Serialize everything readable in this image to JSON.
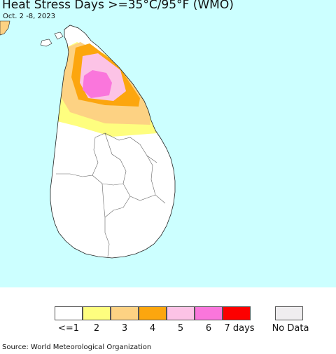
{
  "title": "Heat Stress Days >=35°C/95°F (WMO)",
  "subtitle": "Oct. 2 -8, 2023",
  "legend": {
    "items": [
      {
        "label": "<=1",
        "color": "#ffffff"
      },
      {
        "label": "2",
        "color": "#fefe7f"
      },
      {
        "label": "3",
        "color": "#fdd283"
      },
      {
        "label": "4",
        "color": "#fca60e"
      },
      {
        "label": "5",
        "color": "#fcc3e6"
      },
      {
        "label": "6",
        "color": "#fa76dc"
      },
      {
        "label": "7 days",
        "color": "#fd0000"
      }
    ],
    "no_data": {
      "label": "No Data",
      "color": "#efedef"
    }
  },
  "colors": {
    "sea": "#ccffff",
    "land": "#ffffff",
    "border": "#222222"
  },
  "source": "Source: World Meteorological Organization"
}
